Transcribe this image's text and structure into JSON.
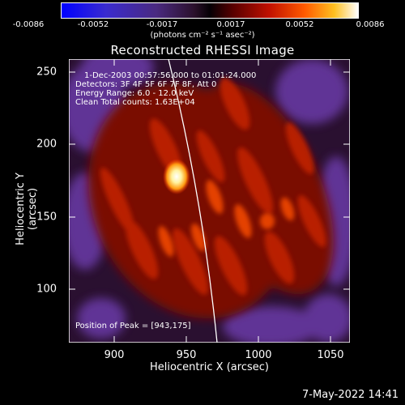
{
  "colorbar": {
    "tick_labels": [
      "-0.0086",
      "-0.0052",
      "-0.0017",
      "0.0017",
      "0.0052",
      "0.0086"
    ],
    "units": "(photons cm⁻² s⁻¹ asec⁻²)"
  },
  "title": "Reconstructed RHESSI Image",
  "axes": {
    "xlabel": "Heliocentric X (arcsec)",
    "ylabel": "Heliocentric Y (arcsec)",
    "x_ticks": [
      "900",
      "950",
      "1000",
      "1050"
    ],
    "y_ticks": [
      "100",
      "150",
      "200",
      "250"
    ],
    "xlim": [
      865,
      1060
    ],
    "ylim": [
      62,
      258
    ]
  },
  "annotations": {
    "time_range": "1-Dec-2003 00:57:56.000 to 01:01:24.000",
    "detectors": "Detectors: 3F 4F 5F 6F 7F 8F, Att 0",
    "energy": "Energy Range: 6.0 - 12.0 keV",
    "clean": "Clean     Total counts: 1.63E+04",
    "peak": "Position of Peak = [943,175]"
  },
  "timestamp": "7-May-2022 14:41",
  "peak_position": [
    943,
    175
  ]
}
